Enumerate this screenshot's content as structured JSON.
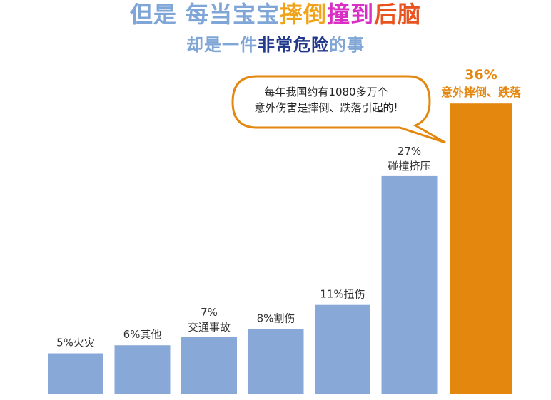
{
  "header": {
    "title_parts": [
      "但是 每当宝宝",
      "摔倒",
      "撞到",
      "后脑"
    ],
    "subtitle_parts": [
      "却是一件",
      "非常危险",
      "的事"
    ]
  },
  "callout": {
    "lines": [
      "每年我国约有1080多万个",
      "意外伤害是摔倒、跌落引起的!"
    ]
  },
  "colors": {
    "bar_default": "#88a9d8",
    "bar_highlight": "#e3870e",
    "label_default": "#333333",
    "label_highlight": "#e3870e",
    "bubble_border": "#e3870e"
  },
  "chart_data": {
    "type": "bar",
    "categories": [
      "火灾",
      "其他",
      "交通事故",
      "割伤",
      "扭伤",
      "碰撞挤压",
      "意外摔倒、跌落"
    ],
    "values": [
      5,
      6,
      7,
      8,
      11,
      27,
      36
    ],
    "unit": "%",
    "highlight_index": 6,
    "title": "",
    "xlabel": "",
    "ylabel": "",
    "ylim": [
      0,
      40
    ],
    "grid": false
  }
}
